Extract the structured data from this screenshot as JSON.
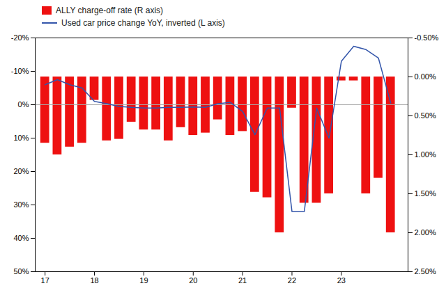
{
  "chart_data": {
    "type": "bar",
    "x": [
      17.0,
      17.25,
      17.5,
      17.75,
      18.0,
      18.25,
      18.5,
      18.75,
      19.0,
      19.25,
      19.5,
      19.75,
      20.0,
      20.25,
      20.5,
      20.75,
      21.0,
      21.25,
      21.5,
      21.75,
      22.0,
      22.25,
      22.5,
      22.75,
      23.0,
      23.25,
      23.5,
      23.75,
      24.0
    ],
    "series": [
      {
        "name": "ALLY charge-off rate (R axis)",
        "type": "bar",
        "axis": "y2",
        "color": "#EE1111",
        "values": [
          0.0085,
          0.01,
          0.009,
          0.0085,
          0.003,
          0.0082,
          0.008,
          0.0058,
          0.0068,
          0.0068,
          0.0082,
          0.0065,
          0.0075,
          0.0072,
          0.0055,
          0.0075,
          0.007,
          0.0148,
          0.0155,
          0.02,
          0.004,
          0.0162,
          0.0162,
          0.015,
          0.0005,
          0.0005,
          0.015,
          0.013,
          0.02
        ]
      },
      {
        "name": "Used car price change YoY, inverted (L axis)",
        "type": "line",
        "color": "#3355AA",
        "values": [
          -0.06,
          -0.075,
          -0.06,
          -0.05,
          -0.01,
          -0.003,
          0.005,
          0.008,
          0.01,
          0.01,
          0.008,
          0.008,
          0.007,
          0.008,
          -0.003,
          -0.007,
          0.02,
          0.09,
          0.01,
          0.01,
          0.32,
          0.32,
          0.01,
          0.1,
          -0.13,
          -0.175,
          -0.165,
          -0.14,
          -0.005
        ]
      }
    ],
    "xlim": [
      16.8,
      24.35
    ],
    "xticks": [
      17,
      18,
      19,
      20,
      21,
      22,
      23
    ],
    "ylim": [
      0.5,
      -0.2
    ],
    "yticks": [
      {
        "value": -0.2,
        "label": "-20%"
      },
      {
        "value": -0.1,
        "label": "-10%"
      },
      {
        "value": 0.0,
        "label": "0%"
      },
      {
        "value": 0.1,
        "label": "10%"
      },
      {
        "value": 0.2,
        "label": "20%"
      },
      {
        "value": 0.3,
        "label": "30%"
      },
      {
        "value": 0.4,
        "label": "40%"
      },
      {
        "value": 0.5,
        "label": "50%"
      }
    ],
    "y2lim": [
      0.025,
      -0.005
    ],
    "y2ticks": [
      {
        "value": 0.025,
        "label": "2.50%"
      },
      {
        "value": 0.02,
        "label": "2.00%"
      },
      {
        "value": 0.015,
        "label": "1.50%"
      },
      {
        "value": 0.01,
        "label": "1.00%"
      },
      {
        "value": 0.005,
        "label": "0.50%"
      },
      {
        "value": 0.0,
        "label": "0.00%"
      },
      {
        "value": -0.005,
        "label": "-0.50%"
      }
    ],
    "legend": "top",
    "grid": false
  }
}
